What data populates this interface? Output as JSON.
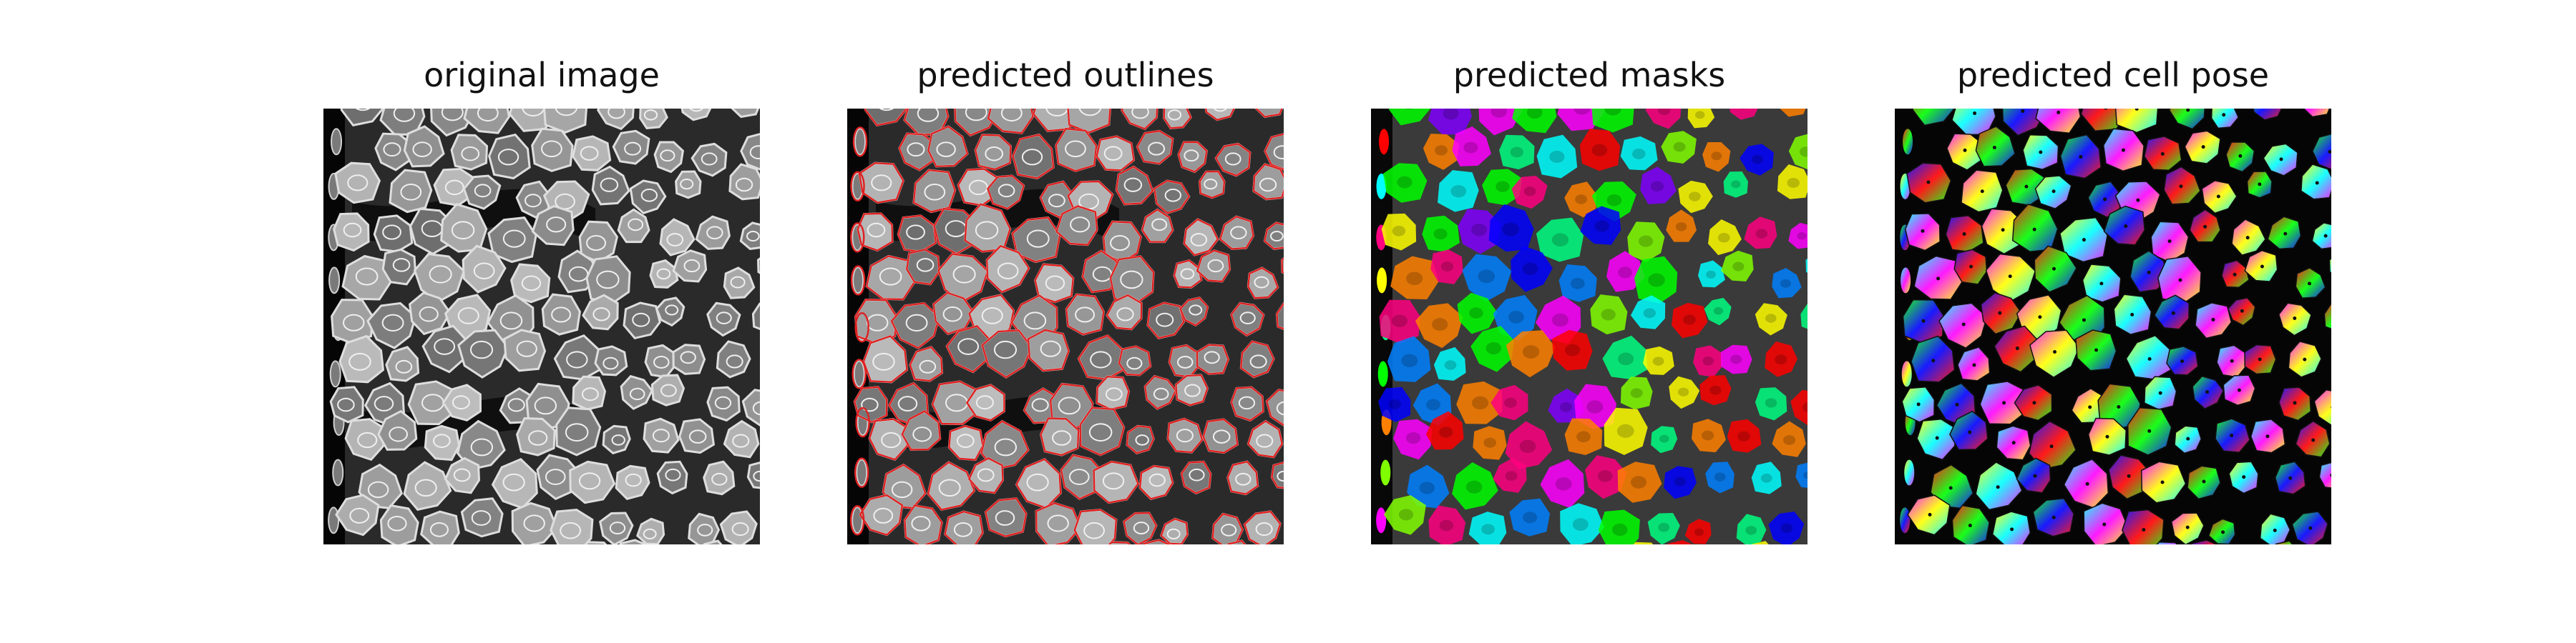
{
  "figure": {
    "panels": [
      {
        "title": "original image"
      },
      {
        "title": "predicted outlines"
      },
      {
        "title": "predicted masks"
      },
      {
        "title": "predicted cell pose"
      }
    ]
  },
  "colors": {
    "background": "#ffffff",
    "outline": "#e02020",
    "grayscale_dark": "#0a0a0a",
    "grayscale_light": "#e8e8e8"
  }
}
